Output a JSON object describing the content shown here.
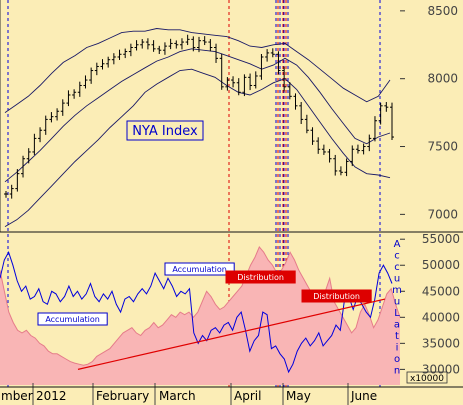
{
  "chart_data": [
    {
      "type": "bar",
      "subtype": "ohlc-price-chart-with-bollinger-bands",
      "title": "NYA Index",
      "yticks": [
        7000,
        7500,
        8000,
        8500
      ],
      "ylim": [
        6870,
        8580
      ],
      "x_labels": [
        "mber",
        "2012",
        "February",
        "March",
        "April",
        "May",
        "June"
      ],
      "closes": [
        7150,
        7190,
        7300,
        7410,
        7460,
        7560,
        7620,
        7700,
        7720,
        7760,
        7820,
        7880,
        7900,
        7950,
        7990,
        8060,
        8090,
        8110,
        8140,
        8160,
        8180,
        8200,
        8230,
        8250,
        8270,
        8250,
        8220,
        8210,
        8240,
        8260,
        8250,
        8270,
        8290,
        8230,
        8280,
        8270,
        8230,
        8150,
        7940,
        7990,
        7970,
        7900,
        8010,
        7950,
        8020,
        8160,
        8190,
        8180,
        8060,
        7940,
        7870,
        7800,
        7700,
        7620,
        7540,
        7480,
        7460,
        7410,
        7320,
        7310,
        7390,
        7480,
        7470,
        7500,
        7560,
        7690,
        7800,
        7790,
        7570
      ],
      "upper_band": [
        7750,
        7810,
        7870,
        7950,
        8040,
        8120,
        8170,
        8230,
        8260,
        8300,
        8340,
        8350,
        8350,
        8370,
        8360,
        8360,
        8340,
        8330,
        8320,
        8310,
        8280,
        8240,
        8230,
        8250,
        8260,
        8200,
        8140,
        8070,
        8000,
        7930,
        7880,
        7830,
        7870,
        7990
      ],
      "middle_band": [
        7240,
        7310,
        7390,
        7470,
        7560,
        7650,
        7730,
        7800,
        7860,
        7920,
        7980,
        8030,
        8080,
        8130,
        8160,
        8200,
        8220,
        8210,
        8200,
        8170,
        8140,
        8110,
        8070,
        8100,
        8150,
        8100,
        8010,
        7900,
        7780,
        7670,
        7560,
        7520,
        7570,
        7600
      ],
      "lower_band": [
        6910,
        6960,
        7030,
        7120,
        7210,
        7300,
        7390,
        7470,
        7550,
        7640,
        7720,
        7800,
        7900,
        7960,
        8010,
        8060,
        8070,
        8040,
        8010,
        7950,
        7900,
        7880,
        7920,
        7970,
        8000,
        7920,
        7800,
        7680,
        7560,
        7450,
        7350,
        7300,
        7290,
        7270
      ],
      "annotations": [
        {
          "text": "NYA Index",
          "position": "center-left"
        }
      ],
      "vertical_markers": {
        "blue_dashed": 6,
        "red_dashed": 4
      }
    },
    {
      "type": "area",
      "subtype": "accumulation-distribution-indicator",
      "yticks": [
        30000,
        35000,
        40000,
        45000,
        50000,
        55000
      ],
      "ylim": [
        27000,
        56000
      ],
      "y_unit": "x10000",
      "distribution_area": [
        49000,
        45000,
        41000,
        39000,
        37500,
        37000,
        37500,
        36500,
        36000,
        35000,
        34500,
        33500,
        33000,
        33000,
        32500,
        32000,
        31500,
        31200,
        31000,
        30800,
        31000,
        31500,
        32500,
        33000,
        33500,
        34000,
        35000,
        36000,
        37000,
        37500,
        38000,
        37000,
        36500,
        37500,
        38000,
        39000,
        38000,
        38500,
        39500,
        40500,
        40000,
        41000,
        40500,
        41000,
        40000,
        41000,
        43000,
        45000,
        44000,
        42500,
        41500,
        42000,
        43000,
        44000,
        45000,
        46000,
        48000,
        50000,
        51500,
        53500,
        52500,
        51000,
        50000,
        48500,
        49000,
        50500,
        52500,
        51000,
        49000,
        47500,
        46000,
        44500,
        43500,
        44000,
        45000,
        47500,
        43000,
        41500,
        40000,
        38500,
        37000,
        38000,
        41000,
        42500,
        40500,
        38000,
        39500,
        42000,
        44500,
        45500,
        42500,
        40000
      ],
      "accumulation_line": [
        47500,
        51000,
        52500,
        50000,
        47000,
        45000,
        46000,
        43500,
        44000,
        45500,
        43000,
        42500,
        45000,
        44500,
        43000,
        44000,
        46000,
        44000,
        45000,
        43500,
        44500,
        46500,
        44000,
        43000,
        44500,
        43500,
        45000,
        42500,
        41000,
        43500,
        44000,
        43000,
        44500,
        45500,
        44500,
        46000,
        48500,
        47000,
        45500,
        47500,
        46000,
        44000,
        45000,
        44500,
        45500,
        37000,
        35000,
        36500,
        35500,
        37500,
        38000,
        37000,
        38500,
        39000,
        37500,
        40000,
        41000,
        37500,
        33500,
        35500,
        36500,
        41000,
        40500,
        34000,
        34500,
        33000,
        32000,
        29500,
        31000,
        33500,
        35000,
        36000,
        34500,
        35500,
        37000,
        34500,
        35500,
        36500,
        38500,
        37500,
        43500,
        44000,
        41500,
        44000,
        42500,
        41000,
        40000,
        43500,
        48500,
        50000,
        48500,
        46500
      ],
      "trendline_start": 30000,
      "trendline_end": 43500,
      "labels": [
        {
          "text": "Accumulation",
          "color": "#0000cc"
        },
        {
          "text": "Accumulation",
          "color": "#0000cc"
        },
        {
          "text": "Distribution",
          "color": "#cc0000"
        },
        {
          "text": "Distribution",
          "color": "#cc0000"
        }
      ],
      "vertical_text": "AccumuLation",
      "colors": {
        "area": "#f9b5b5",
        "area_edge": "#e57c8a",
        "line": "#0000dd",
        "trend": "#e00000"
      }
    }
  ]
}
